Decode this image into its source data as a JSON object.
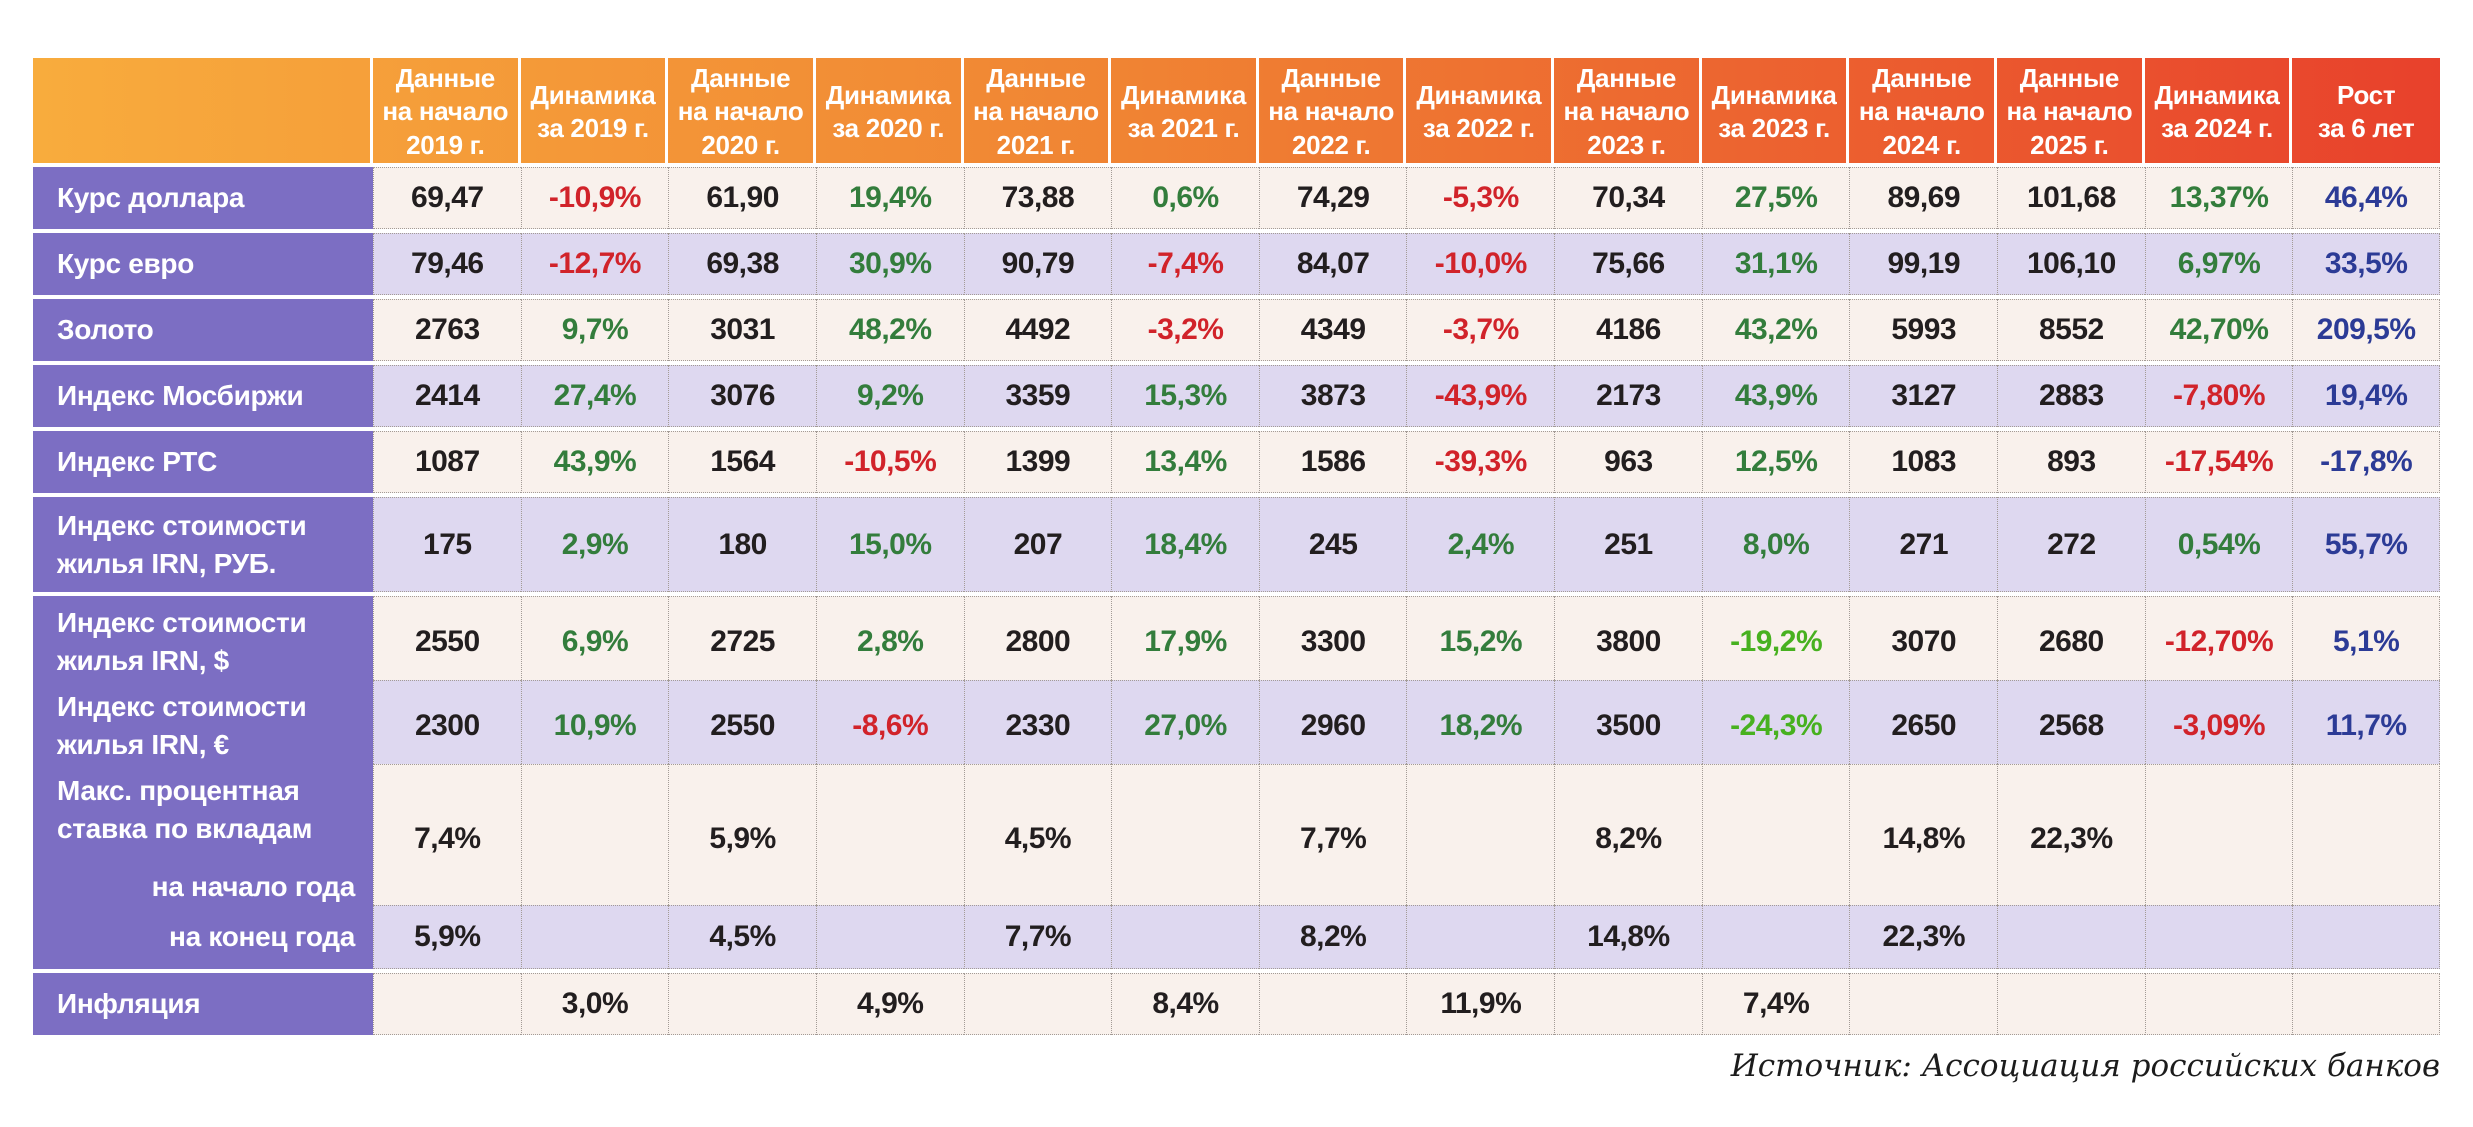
{
  "title": "",
  "source_note": "Источник: Ассоциация российских банков",
  "colors": {
    "header_gradient_start": "#F8AC3D",
    "header_gradient_end": "#E8412C",
    "label_purple": "#7C6EC3",
    "row_cream": "#F9F1EC",
    "row_lavender": "#DED8F0",
    "text_black": "#221E1F",
    "text_red": "#D1232A",
    "text_green": "#337D3C",
    "text_bright_green": "#47B11F",
    "text_blue": "#2C3B96"
  },
  "chart_data": {
    "type": "table",
    "columns": [
      "Данные\nна начало\n2019 г.",
      "Динамика\nза 2019 г.",
      "Данные\nна начало\n2020 г.",
      "Динамика\nза 2020 г.",
      "Данные\nна начало\n2021 г.",
      "Динамика\nза 2021 г.",
      "Данные\nна начало\n2022 г.",
      "Динамика\nза 2022 г.",
      "Данные\nна начало\n2023 г.",
      "Динамика\nза 2023 г.",
      "Данные\nна начало\n2024 г.",
      "Данные\nна начало\n2025 г.",
      "Динамика\nза 2024 г.",
      "Рост\nза 6 лет"
    ],
    "color_legend": {
      "k": "black",
      "r": "red",
      "g": "green",
      "lg": "bright-green",
      "b": "blue"
    },
    "rows": [
      {
        "label": "Курс доллара",
        "cells": [
          [
            "69,47",
            "k"
          ],
          [
            "-10,9%",
            "r"
          ],
          [
            "61,90",
            "k"
          ],
          [
            "19,4%",
            "g"
          ],
          [
            "73,88",
            "k"
          ],
          [
            "0,6%",
            "g"
          ],
          [
            "74,29",
            "k"
          ],
          [
            "-5,3%",
            "r"
          ],
          [
            "70,34",
            "k"
          ],
          [
            "27,5%",
            "g"
          ],
          [
            "89,69",
            "k"
          ],
          [
            "101,68",
            "k"
          ],
          [
            "13,37%",
            "g"
          ],
          [
            "46,4%",
            "b"
          ]
        ]
      },
      {
        "label": "Курс евро",
        "cells": [
          [
            "79,46",
            "k"
          ],
          [
            "-12,7%",
            "r"
          ],
          [
            "69,38",
            "k"
          ],
          [
            "30,9%",
            "g"
          ],
          [
            "90,79",
            "k"
          ],
          [
            "-7,4%",
            "r"
          ],
          [
            "84,07",
            "k"
          ],
          [
            "-10,0%",
            "r"
          ],
          [
            "75,66",
            "k"
          ],
          [
            "31,1%",
            "g"
          ],
          [
            "99,19",
            "k"
          ],
          [
            "106,10",
            "k"
          ],
          [
            "6,97%",
            "g"
          ],
          [
            "33,5%",
            "b"
          ]
        ]
      },
      {
        "label": "Золото",
        "cells": [
          [
            "2763",
            "k"
          ],
          [
            "9,7%",
            "g"
          ],
          [
            "3031",
            "k"
          ],
          [
            "48,2%",
            "g"
          ],
          [
            "4492",
            "k"
          ],
          [
            "-3,2%",
            "r"
          ],
          [
            "4349",
            "k"
          ],
          [
            "-3,7%",
            "r"
          ],
          [
            "4186",
            "k"
          ],
          [
            "43,2%",
            "g"
          ],
          [
            "5993",
            "k"
          ],
          [
            "8552",
            "k"
          ],
          [
            "42,70%",
            "g"
          ],
          [
            "209,5%",
            "b"
          ]
        ]
      },
      {
        "label": "Индекс Мосбиржи",
        "cells": [
          [
            "2414",
            "k"
          ],
          [
            "27,4%",
            "g"
          ],
          [
            "3076",
            "k"
          ],
          [
            "9,2%",
            "g"
          ],
          [
            "3359",
            "k"
          ],
          [
            "15,3%",
            "g"
          ],
          [
            "3873",
            "k"
          ],
          [
            "-43,9%",
            "r"
          ],
          [
            "2173",
            "k"
          ],
          [
            "43,9%",
            "g"
          ],
          [
            "3127",
            "k"
          ],
          [
            "2883",
            "k"
          ],
          [
            "-7,80%",
            "r"
          ],
          [
            "19,4%",
            "b"
          ]
        ]
      },
      {
        "label": "Индекс РТС",
        "cells": [
          [
            "1087",
            "k"
          ],
          [
            "43,9%",
            "g"
          ],
          [
            "1564",
            "k"
          ],
          [
            "-10,5%",
            "r"
          ],
          [
            "1399",
            "k"
          ],
          [
            "13,4%",
            "g"
          ],
          [
            "1586",
            "k"
          ],
          [
            "-39,3%",
            "r"
          ],
          [
            "963",
            "k"
          ],
          [
            "12,5%",
            "g"
          ],
          [
            "1083",
            "k"
          ],
          [
            "893",
            "k"
          ],
          [
            "-17,54%",
            "r"
          ],
          [
            "-17,8%",
            "b"
          ]
        ]
      },
      {
        "label": "Индекс стоимости\nжилья IRN, РУБ.",
        "cells": [
          [
            "175",
            "k"
          ],
          [
            "2,9%",
            "g"
          ],
          [
            "180",
            "k"
          ],
          [
            "15,0%",
            "g"
          ],
          [
            "207",
            "k"
          ],
          [
            "18,4%",
            "g"
          ],
          [
            "245",
            "k"
          ],
          [
            "2,4%",
            "g"
          ],
          [
            "251",
            "k"
          ],
          [
            "8,0%",
            "g"
          ],
          [
            "271",
            "k"
          ],
          [
            "272",
            "k"
          ],
          [
            "0,54%",
            "g"
          ],
          [
            "55,7%",
            "b"
          ]
        ]
      },
      {
        "label": "Индекс стоимости\nжилья IRN, $",
        "cells": [
          [
            "2550",
            "k"
          ],
          [
            "6,9%",
            "g"
          ],
          [
            "2725",
            "k"
          ],
          [
            "2,8%",
            "g"
          ],
          [
            "2800",
            "k"
          ],
          [
            "17,9%",
            "g"
          ],
          [
            "3300",
            "k"
          ],
          [
            "15,2%",
            "g"
          ],
          [
            "3800",
            "k"
          ],
          [
            "-19,2%",
            "lg"
          ],
          [
            "3070",
            "k"
          ],
          [
            "2680",
            "k"
          ],
          [
            "-12,70%",
            "r"
          ],
          [
            "5,1%",
            "b"
          ]
        ]
      },
      {
        "label": "Индекс стоимости\nжилья IRN, €",
        "cells": [
          [
            "2300",
            "k"
          ],
          [
            "10,9%",
            "g"
          ],
          [
            "2550",
            "k"
          ],
          [
            "-8,6%",
            "r"
          ],
          [
            "2330",
            "k"
          ],
          [
            "27,0%",
            "g"
          ],
          [
            "2960",
            "k"
          ],
          [
            "18,2%",
            "g"
          ],
          [
            "3500",
            "k"
          ],
          [
            "-24,3%",
            "lg"
          ],
          [
            "2650",
            "k"
          ],
          [
            "2568",
            "k"
          ],
          [
            "-3,09%",
            "r"
          ],
          [
            "11,7%",
            "b"
          ]
        ]
      },
      {
        "label": "Макс. процентная\nставка по вкладам",
        "label_sub": "на начало года",
        "cells": [
          [
            "7,4%",
            "k"
          ],
          [
            "",
            ""
          ],
          [
            "5,9%",
            "k"
          ],
          [
            "",
            ""
          ],
          [
            "4,5%",
            "k"
          ],
          [
            "",
            ""
          ],
          [
            "7,7%",
            "k"
          ],
          [
            "",
            ""
          ],
          [
            "8,2%",
            "k"
          ],
          [
            "",
            ""
          ],
          [
            "14,8%",
            "k"
          ],
          [
            "22,3%",
            "k"
          ],
          [
            "",
            ""
          ],
          [
            "",
            ""
          ]
        ]
      },
      {
        "label": "на конец года",
        "label_align": "right",
        "cells": [
          [
            "5,9%",
            "k"
          ],
          [
            "",
            ""
          ],
          [
            "4,5%",
            "k"
          ],
          [
            "",
            ""
          ],
          [
            "7,7%",
            "k"
          ],
          [
            "",
            ""
          ],
          [
            "8,2%",
            "k"
          ],
          [
            "",
            ""
          ],
          [
            "14,8%",
            "k"
          ],
          [
            "",
            ""
          ],
          [
            "22,3%",
            "k"
          ],
          [
            "",
            ""
          ],
          [
            "",
            ""
          ],
          [
            "",
            ""
          ]
        ]
      },
      {
        "label": "Инфляция",
        "cells": [
          [
            "",
            ""
          ],
          [
            "3,0%",
            "k"
          ],
          [
            "",
            ""
          ],
          [
            "4,9%",
            "k"
          ],
          [
            "",
            ""
          ],
          [
            "8,4%",
            "k"
          ],
          [
            "",
            ""
          ],
          [
            "11,9%",
            "k"
          ],
          [
            "",
            ""
          ],
          [
            "7,4%",
            "k"
          ],
          [
            "",
            ""
          ],
          [
            "",
            ""
          ],
          [
            "",
            ""
          ],
          [
            "",
            ""
          ]
        ]
      }
    ]
  }
}
